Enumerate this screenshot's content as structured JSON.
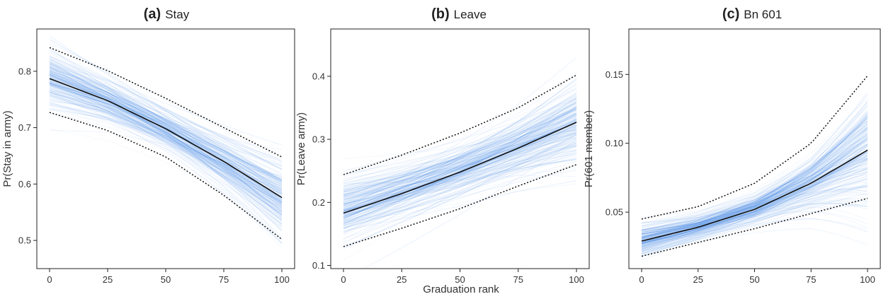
{
  "figure": {
    "xlabel": "Graduation rank",
    "colors": {
      "band": "#3f86e6",
      "mean_line": "#111111",
      "ci_line": "#111111"
    }
  },
  "chart_data": [
    {
      "type": "line",
      "title_tag": "(a)",
      "title_text": "Stay",
      "ylabel": "Pr(Stay in army)",
      "xlim": [
        0,
        100
      ],
      "ylim": [
        0.45,
        0.875
      ],
      "x_ticks": [
        0,
        25,
        50,
        75,
        100
      ],
      "y_ticks": [
        0.5,
        0.6,
        0.7,
        0.8
      ],
      "series": [
        {
          "x": [
            0,
            25,
            50,
            75,
            100
          ],
          "mean": [
            0.787,
            0.748,
            0.698,
            0.64,
            0.576
          ],
          "lower": [
            0.727,
            0.695,
            0.648,
            0.58,
            0.502
          ],
          "upper": [
            0.842,
            0.801,
            0.752,
            0.7,
            0.648
          ]
        }
      ]
    },
    {
      "type": "line",
      "title_tag": "(b)",
      "title_text": "Leave",
      "ylabel": "Pr(Leave army)",
      "xlim": [
        0,
        100
      ],
      "ylim": [
        0.095,
        0.475
      ],
      "x_ticks": [
        0,
        25,
        50,
        75,
        100
      ],
      "y_ticks": [
        0.1,
        0.2,
        0.3,
        0.4
      ],
      "series": [
        {
          "x": [
            0,
            25,
            50,
            75,
            100
          ],
          "mean": [
            0.183,
            0.214,
            0.248,
            0.286,
            0.327
          ],
          "lower": [
            0.13,
            0.159,
            0.19,
            0.226,
            0.26
          ],
          "upper": [
            0.244,
            0.275,
            0.31,
            0.35,
            0.402
          ]
        }
      ]
    },
    {
      "type": "line",
      "title_tag": "(c)",
      "title_text": "Bn 601",
      "ylabel": "Pr(601 member)",
      "xlim": [
        0,
        100
      ],
      "ylim": [
        0.009,
        0.183
      ],
      "x_ticks": [
        0,
        25,
        50,
        75,
        100
      ],
      "y_ticks": [
        0.05,
        0.1,
        0.15
      ],
      "series": [
        {
          "x": [
            0,
            25,
            50,
            75,
            100
          ],
          "mean": [
            0.029,
            0.039,
            0.052,
            0.071,
            0.095
          ],
          "lower": [
            0.018,
            0.028,
            0.038,
            0.049,
            0.06
          ],
          "upper": [
            0.045,
            0.054,
            0.071,
            0.1,
            0.149
          ]
        }
      ]
    }
  ]
}
